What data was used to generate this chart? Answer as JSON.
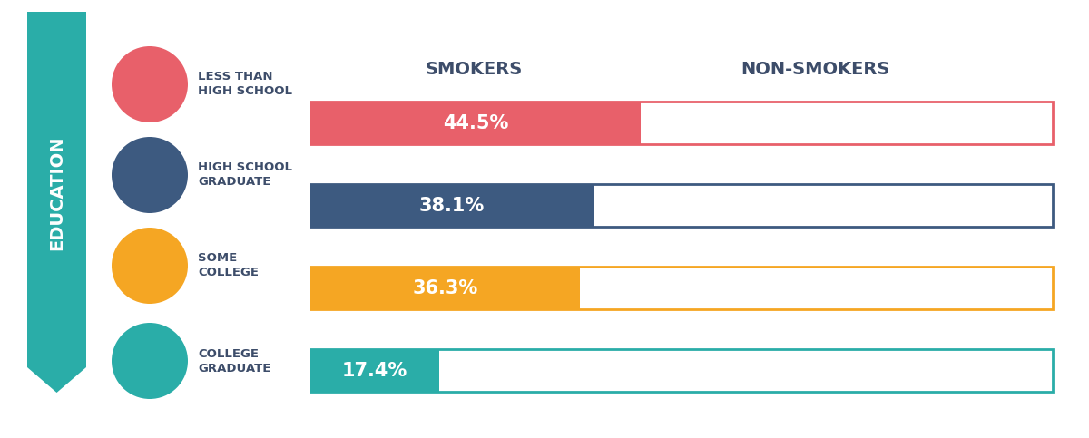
{
  "categories": [
    "LESS THAN\nHIGH SCHOOL",
    "HIGH SCHOOL\nGRADUATE",
    "SOME\nCOLLEGE",
    "COLLEGE\nGRADUATE"
  ],
  "smoker_values": [
    44.5,
    38.1,
    36.3,
    17.4
  ],
  "smoker_labels": [
    "44.5%",
    "38.1%",
    "36.3%",
    "17.4%"
  ],
  "bar_colors": [
    "#E8606A",
    "#3D5A80",
    "#F5A623",
    "#2AADA8"
  ],
  "border_colors": [
    "#E8606A",
    "#3D5A80",
    "#F5A623",
    "#2AADA8"
  ],
  "icon_colors": [
    "#E8606A",
    "#3D5A80",
    "#F5A623",
    "#2AADA8"
  ],
  "total_bar_width": 100,
  "header_smokers": "SMOKERS",
  "header_non_smokers": "NON-SMOKERS",
  "education_label": "EDUCATION",
  "education_bg_color": "#2AADA8",
  "background_color": "#FFFFFF",
  "header_color": "#3D4D6A",
  "label_color": "#3D4D6A"
}
